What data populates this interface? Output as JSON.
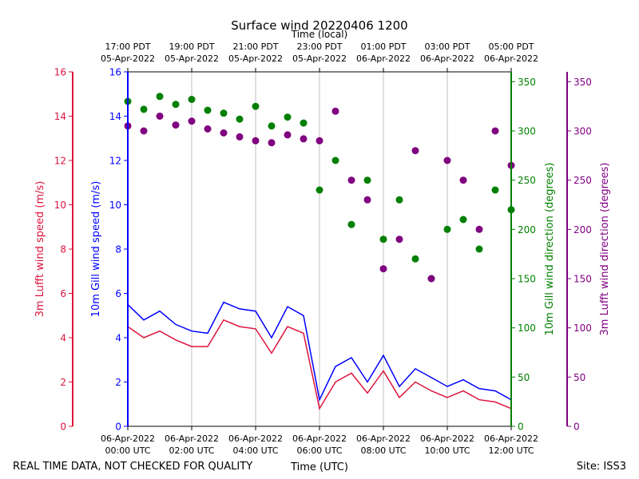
{
  "chart_data": {
    "type": "line+scatter",
    "title": "Surface wind 20220406 1200",
    "top_axis_label": "Time (local)",
    "xlabel": "Time (UTC)",
    "footer_left": "REAL TIME DATA, NOT CHECKED FOR QUALITY",
    "footer_right": "Site: ISS3",
    "x_range_hours_utc": [
      0,
      12
    ],
    "bottom_ticks": [
      {
        "h": 0,
        "line1": "06-Apr-2022",
        "line2": "00:00 UTC"
      },
      {
        "h": 2,
        "line1": "06-Apr-2022",
        "line2": "02:00 UTC"
      },
      {
        "h": 4,
        "line1": "06-Apr-2022",
        "line2": "04:00 UTC"
      },
      {
        "h": 6,
        "line1": "06-Apr-2022",
        "line2": "06:00 UTC"
      },
      {
        "h": 8,
        "line1": "06-Apr-2022",
        "line2": "08:00 UTC"
      },
      {
        "h": 10,
        "line1": "06-Apr-2022",
        "line2": "10:00 UTC"
      },
      {
        "h": 12,
        "line1": "06-Apr-2022",
        "line2": "12:00 UTC"
      }
    ],
    "top_ticks": [
      {
        "h": 0,
        "line1": "17:00 PDT",
        "line2": "05-Apr-2022"
      },
      {
        "h": 2,
        "line1": "19:00 PDT",
        "line2": "05-Apr-2022"
      },
      {
        "h": 4,
        "line1": "21:00 PDT",
        "line2": "05-Apr-2022"
      },
      {
        "h": 6,
        "line1": "23:00 PDT",
        "line2": "05-Apr-2022"
      },
      {
        "h": 8,
        "line1": "01:00 PDT",
        "line2": "06-Apr-2022"
      },
      {
        "h": 10,
        "line1": "03:00 PDT",
        "line2": "06-Apr-2022"
      },
      {
        "h": 12,
        "line1": "05:00 PDT",
        "line2": "06-Apr-2022"
      }
    ],
    "axes": {
      "gill_speed": {
        "label": "10m Gill wind speed (m/s)",
        "color": "#0000ff",
        "range": [
          0,
          16
        ],
        "ticks": [
          0,
          2,
          4,
          6,
          8,
          10,
          12,
          14,
          16
        ]
      },
      "lufft_speed": {
        "label": "3m Lufft wind speed (m/s)",
        "color": "#dc143c",
        "range": [
          0,
          16
        ],
        "ticks": [
          0,
          2,
          4,
          6,
          8,
          10,
          12,
          14,
          16
        ]
      },
      "gill_dir": {
        "label": "10m Gill wind direction (degrees)",
        "color": "#008000",
        "range": [
          0,
          360
        ],
        "ticks": [
          0,
          50,
          100,
          150,
          200,
          250,
          300,
          350
        ]
      },
      "lufft_dir": {
        "label": "3m Lufft wind direction (degrees)",
        "color": "#800080",
        "range": [
          0,
          360
        ],
        "ticks": [
          0,
          50,
          100,
          150,
          200,
          250,
          300,
          350
        ]
      }
    },
    "series": [
      {
        "name": "10m Gill wind speed",
        "kind": "line",
        "axis": "gill_speed",
        "color": "#0000ff",
        "x": [
          0,
          0.5,
          1,
          1.5,
          2,
          2.5,
          3,
          3.5,
          4,
          4.5,
          5,
          5.5,
          6,
          6.5,
          7,
          7.5,
          8,
          8.5,
          9,
          9.5,
          10,
          10.5,
          11,
          11.5,
          12
        ],
        "y": [
          5.5,
          4.8,
          5.2,
          4.6,
          4.3,
          4.2,
          5.6,
          5.3,
          5.2,
          4.0,
          5.4,
          5.0,
          1.2,
          2.7,
          3.1,
          2.0,
          3.2,
          1.8,
          2.6,
          2.2,
          1.8,
          2.1,
          1.7,
          1.6,
          1.2
        ]
      },
      {
        "name": "3m Lufft wind speed",
        "kind": "line",
        "axis": "lufft_speed",
        "color": "#dc143c",
        "x": [
          0,
          0.5,
          1,
          1.5,
          2,
          2.5,
          3,
          3.5,
          4,
          4.5,
          5,
          5.5,
          6,
          6.5,
          7,
          7.5,
          8,
          8.5,
          9,
          9.5,
          10,
          10.5,
          11,
          11.5,
          12
        ],
        "y": [
          4.5,
          4.0,
          4.3,
          3.9,
          3.6,
          3.6,
          4.8,
          4.5,
          4.4,
          3.3,
          4.5,
          4.2,
          0.8,
          2.0,
          2.4,
          1.5,
          2.5,
          1.3,
          2.0,
          1.6,
          1.3,
          1.6,
          1.2,
          1.1,
          0.8
        ]
      },
      {
        "name": "10m Gill wind direction",
        "kind": "scatter",
        "axis": "gill_dir",
        "color": "#008000",
        "x": [
          0,
          0.5,
          1,
          1.5,
          2,
          2.5,
          3,
          3.5,
          4,
          4.5,
          5,
          5.5,
          6,
          6.5,
          7,
          7.5,
          8,
          8.5,
          9,
          9.5,
          10,
          10.5,
          11,
          11.5,
          12
        ],
        "y": [
          330,
          322,
          335,
          327,
          332,
          321,
          318,
          312,
          325,
          305,
          314,
          308,
          240,
          270,
          205,
          250,
          190,
          230,
          170,
          150,
          200,
          210,
          180,
          240,
          220
        ]
      },
      {
        "name": "3m Lufft wind direction",
        "kind": "scatter",
        "axis": "lufft_dir",
        "color": "#800080",
        "x": [
          0,
          0.5,
          1,
          1.5,
          2,
          2.5,
          3,
          3.5,
          4,
          4.5,
          5,
          5.5,
          6,
          6.5,
          7,
          7.5,
          8,
          8.5,
          9,
          9.5,
          10,
          10.5,
          11,
          11.5,
          12
        ],
        "y": [
          305,
          300,
          315,
          306,
          310,
          302,
          298,
          294,
          290,
          288,
          296,
          292,
          290,
          320,
          250,
          230,
          160,
          190,
          280,
          150,
          270,
          250,
          200,
          300,
          265
        ]
      }
    ]
  }
}
